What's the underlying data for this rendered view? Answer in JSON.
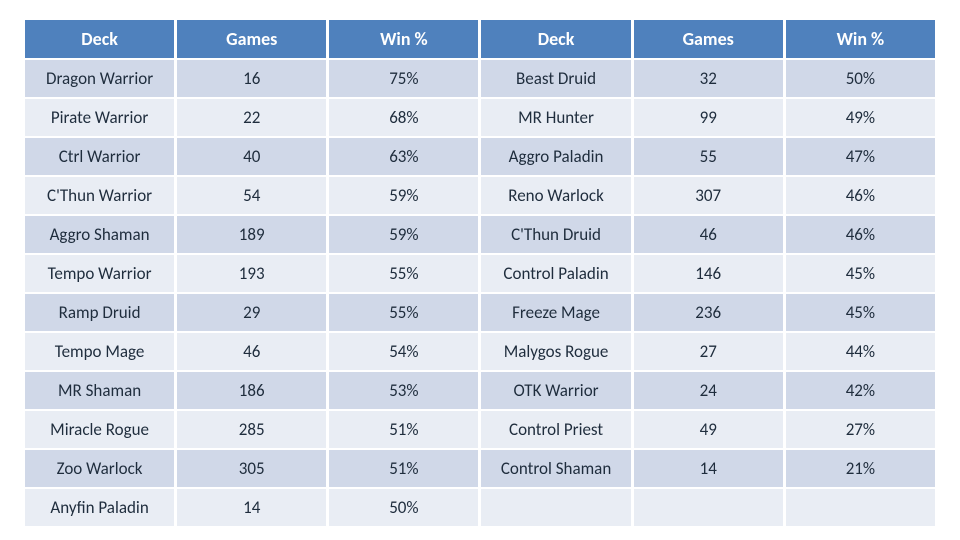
{
  "table": {
    "headers": [
      "Deck",
      "Games",
      "Win %",
      "Deck",
      "Games",
      "Win %"
    ],
    "rows": [
      [
        "Dragon Warrior",
        "16",
        "75%",
        "Beast Druid",
        "32",
        "50%"
      ],
      [
        "Pirate Warrior",
        "22",
        "68%",
        "MR Hunter",
        "99",
        "49%"
      ],
      [
        "Ctrl Warrior",
        "40",
        "63%",
        "Aggro Paladin",
        "55",
        "47%"
      ],
      [
        "C'Thun Warrior",
        "54",
        "59%",
        "Reno Warlock",
        "307",
        "46%"
      ],
      [
        "Aggro Shaman",
        "189",
        "59%",
        "C'Thun Druid",
        "46",
        "46%"
      ],
      [
        "Tempo Warrior",
        "193",
        "55%",
        "Control Paladin",
        "146",
        "45%"
      ],
      [
        "Ramp Druid",
        "29",
        "55%",
        "Freeze Mage",
        "236",
        "45%"
      ],
      [
        "Tempo Mage",
        "46",
        "54%",
        "Malygos Rogue",
        "27",
        "44%"
      ],
      [
        "MR Shaman",
        "186",
        "53%",
        "OTK Warrior",
        "24",
        "42%"
      ],
      [
        "Miracle Rogue",
        "285",
        "51%",
        "Control Priest",
        "49",
        "27%"
      ],
      [
        "Zoo Warlock",
        "305",
        "51%",
        "Control Shaman",
        "14",
        "21%"
      ],
      [
        "Anyfin Paladin",
        "14",
        "50%",
        "",
        "",
        ""
      ]
    ],
    "styling": {
      "header_bg": "#4f81bd",
      "header_fg": "#ffffff",
      "row_odd_bg": "#d0d8e8",
      "row_even_bg": "#e9edf4",
      "font_family": "Calibri",
      "header_fontsize": 18,
      "cell_fontsize": 17,
      "border_spacing_h": 3,
      "border_spacing_v": 2
    }
  }
}
